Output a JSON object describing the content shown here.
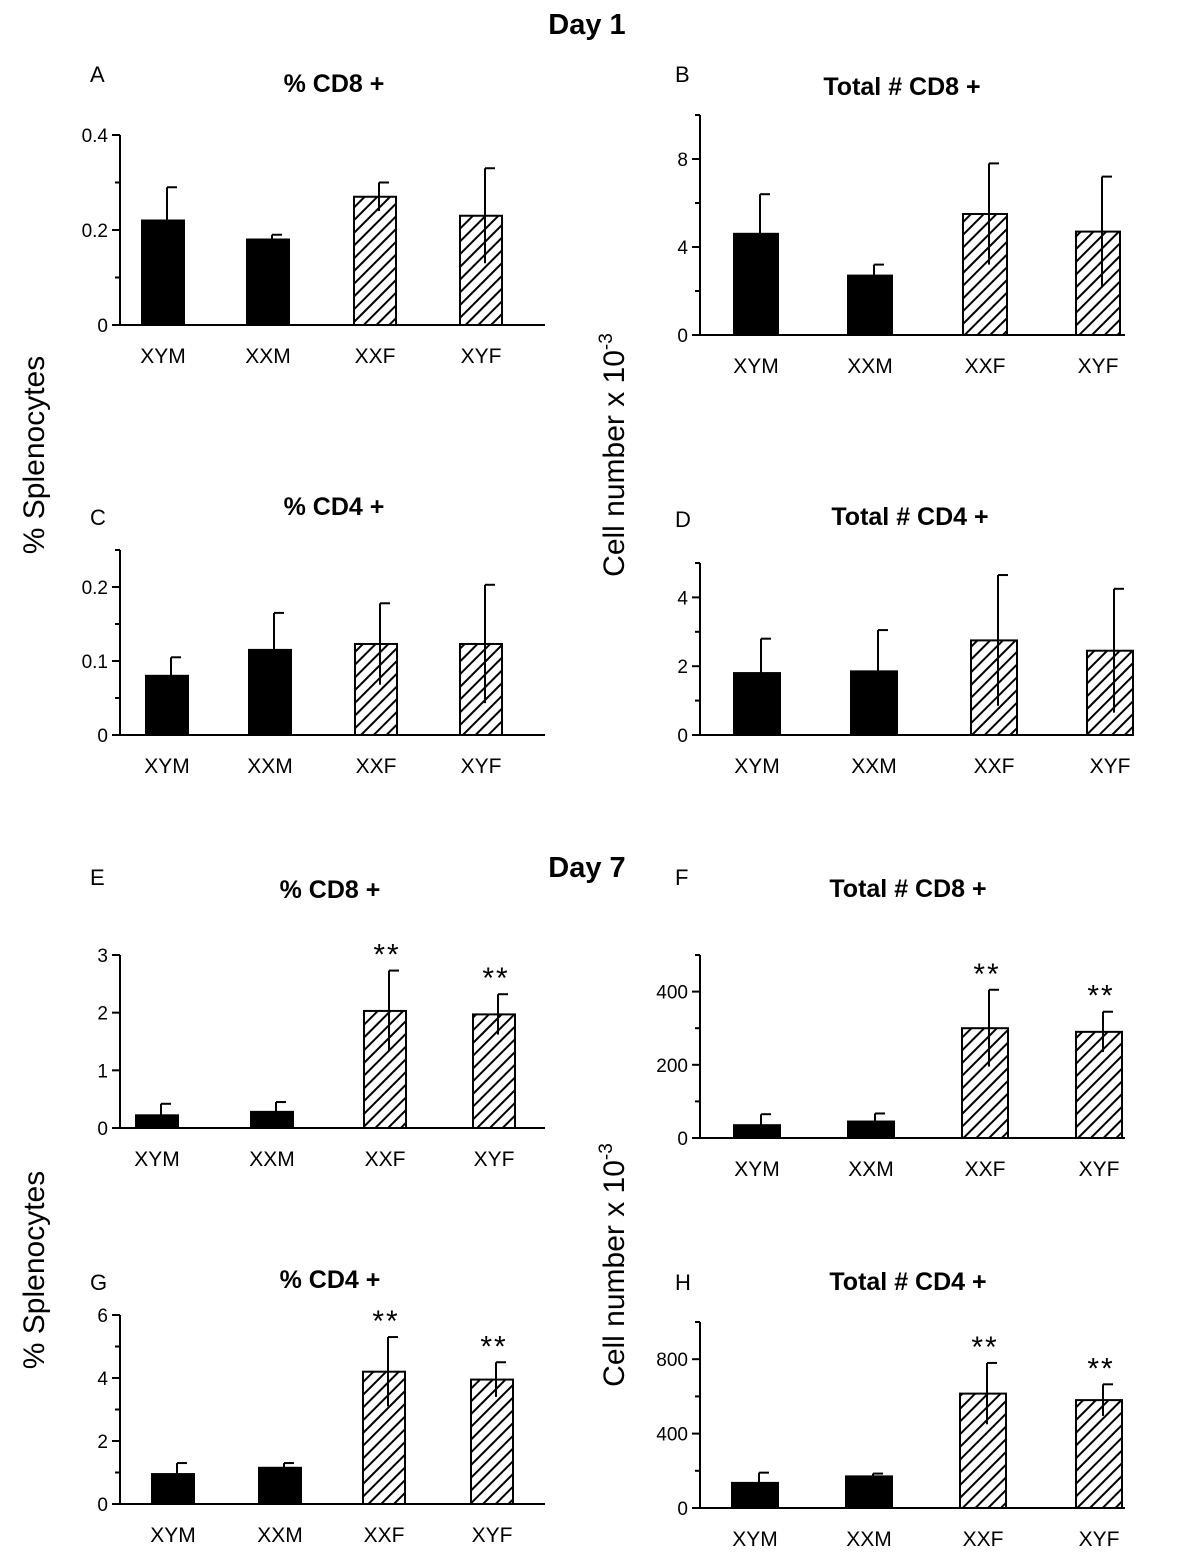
{
  "figure": {
    "day1_title": "Day 1",
    "day7_title": "Day 7",
    "ylabel_percent": "% Splenocytes",
    "ylabel_count_main": "Cell number x 10",
    "ylabel_count_exp": "-3"
  },
  "colors": {
    "male_fill": "#000000",
    "female_hatch": "#000000",
    "background": "#ffffff"
  },
  "chart_data": [
    {
      "panel": "A",
      "type": "bar",
      "title": "% CD8 +",
      "categories": [
        "XYM",
        "XXM",
        "XXF",
        "XYF"
      ],
      "values": [
        0.22,
        0.18,
        0.27,
        0.23
      ],
      "errors": [
        0.07,
        0.01,
        0.03,
        0.1
      ],
      "significance": [
        "",
        "",
        "",
        ""
      ],
      "ylim": [
        0,
        0.4
      ],
      "yticks": [
        0,
        0.2,
        0.4
      ],
      "ytick_labels": [
        "0",
        "0.2",
        "0.4"
      ],
      "minor_ticks": 1,
      "fill": [
        "solid",
        "solid",
        "hatched",
        "hatched"
      ]
    },
    {
      "panel": "B",
      "type": "bar",
      "title": "Total # CD8 +",
      "categories": [
        "XYM",
        "XXM",
        "XXF",
        "XYF"
      ],
      "values": [
        4.6,
        2.7,
        5.5,
        4.7
      ],
      "errors": [
        1.8,
        0.5,
        2.3,
        2.5
      ],
      "significance": [
        "",
        "",
        "",
        ""
      ],
      "ylim": [
        0,
        10
      ],
      "yticks": [
        0,
        4,
        8
      ],
      "ytick_labels": [
        "0",
        "4",
        "8"
      ],
      "minor_ticks": 1,
      "fill": [
        "solid",
        "solid",
        "hatched",
        "hatched"
      ]
    },
    {
      "panel": "C",
      "type": "bar",
      "title": "% CD4 +",
      "categories": [
        "XYM",
        "XXM",
        "XXF",
        "XYF"
      ],
      "values": [
        0.08,
        0.115,
        0.123,
        0.123
      ],
      "errors": [
        0.025,
        0.05,
        0.055,
        0.08
      ],
      "significance": [
        "",
        "",
        "",
        ""
      ],
      "ylim": [
        0,
        0.25
      ],
      "yticks": [
        0,
        0.1,
        0.2
      ],
      "ytick_labels": [
        "0",
        "0.1",
        "0.2"
      ],
      "minor_ticks": 1,
      "fill": [
        "solid",
        "solid",
        "hatched",
        "hatched"
      ]
    },
    {
      "panel": "D",
      "type": "bar",
      "title": "Total # CD4 +",
      "categories": [
        "XYM",
        "XXM",
        "XXF",
        "XYF"
      ],
      "values": [
        1.8,
        1.85,
        2.75,
        2.45
      ],
      "errors": [
        1.0,
        1.2,
        1.9,
        1.8
      ],
      "significance": [
        "",
        "",
        "",
        ""
      ],
      "ylim": [
        0,
        5
      ],
      "yticks": [
        0,
        2,
        4
      ],
      "ytick_labels": [
        "0",
        "2",
        "4"
      ],
      "minor_ticks": 1,
      "fill": [
        "solid",
        "solid",
        "hatched",
        "hatched"
      ]
    },
    {
      "panel": "E",
      "type": "bar",
      "title": "% CD8 +",
      "categories": [
        "XYM",
        "XXM",
        "XXF",
        "XYF"
      ],
      "values": [
        0.22,
        0.28,
        2.03,
        1.97
      ],
      "errors": [
        0.2,
        0.17,
        0.7,
        0.35
      ],
      "significance": [
        "",
        "",
        "**",
        "**"
      ],
      "ylim": [
        0,
        3
      ],
      "yticks": [
        0,
        1,
        2,
        3
      ],
      "ytick_labels": [
        "0",
        "1",
        "2",
        "3"
      ],
      "minor_ticks": 0,
      "fill": [
        "solid",
        "solid",
        "hatched",
        "hatched"
      ]
    },
    {
      "panel": "F",
      "type": "bar",
      "title": "Total # CD8 +",
      "categories": [
        "XYM",
        "XXM",
        "XXF",
        "XYF"
      ],
      "values": [
        35,
        45,
        300,
        290
      ],
      "errors": [
        30,
        22,
        105,
        55
      ],
      "significance": [
        "",
        "",
        "**",
        "**"
      ],
      "ylim": [
        0,
        500
      ],
      "yticks": [
        0,
        200,
        400
      ],
      "ytick_labels": [
        "0",
        "200",
        "400"
      ],
      "minor_ticks": 1,
      "fill": [
        "solid",
        "solid",
        "hatched",
        "hatched"
      ]
    },
    {
      "panel": "G",
      "type": "bar",
      "title": "% CD4 +",
      "categories": [
        "XYM",
        "XXM",
        "XXF",
        "XYF"
      ],
      "values": [
        0.95,
        1.15,
        4.2,
        3.95
      ],
      "errors": [
        0.35,
        0.15,
        1.1,
        0.55
      ],
      "significance": [
        "",
        "",
        "**",
        "**"
      ],
      "ylim": [
        0,
        6
      ],
      "yticks": [
        0,
        2,
        4,
        6
      ],
      "ytick_labels": [
        "0",
        "2",
        "4",
        "6"
      ],
      "minor_ticks": 1,
      "fill": [
        "solid",
        "solid",
        "hatched",
        "hatched"
      ]
    },
    {
      "panel": "H",
      "type": "bar",
      "title": "Total # CD4 +",
      "categories": [
        "XYM",
        "XXM",
        "XXF",
        "XYF"
      ],
      "values": [
        135,
        170,
        615,
        580
      ],
      "errors": [
        55,
        15,
        165,
        85
      ],
      "significance": [
        "",
        "",
        "**",
        "**"
      ],
      "ylim": [
        0,
        1000
      ],
      "yticks": [
        0,
        400,
        800
      ],
      "ytick_labels": [
        "0",
        "400",
        "800"
      ],
      "minor_ticks": 1,
      "fill": [
        "solid",
        "solid",
        "hatched",
        "hatched"
      ]
    }
  ]
}
